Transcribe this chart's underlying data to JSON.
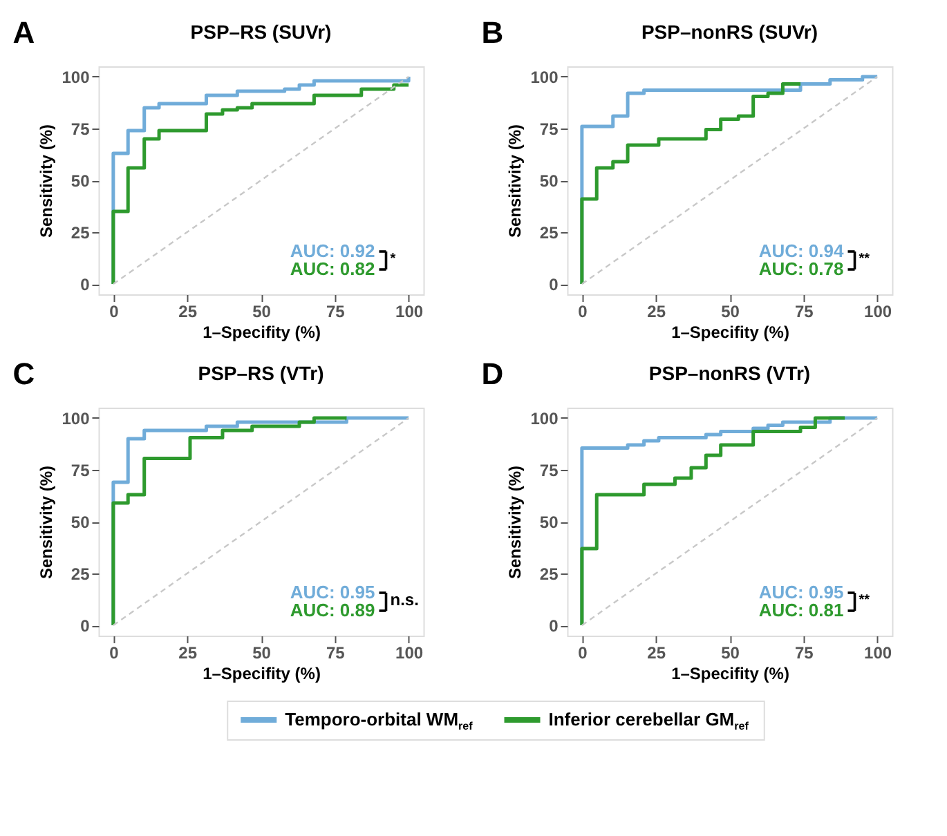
{
  "chart_data": [
    {
      "type": "step",
      "title": "PSP–RS (SUVr)",
      "xlabel": "1–Specifity (%)",
      "ylabel": "Sensitivity (%)",
      "xlim": [
        -5,
        105
      ],
      "ylim": [
        -5,
        105
      ],
      "xticks": [
        0,
        25,
        50,
        75,
        100
      ],
      "yticks": [
        0,
        25,
        50,
        75,
        100
      ],
      "grid": false,
      "legend": false,
      "annotations": [
        "A",
        "AUC: 0.92",
        "AUC: 0.82",
        "*"
      ],
      "series": [
        {
          "color": "#70acd9",
          "x": [
            0,
            0,
            5,
            10.5,
            15.5,
            31.5,
            42,
            58,
            63,
            68,
            100
          ],
          "values": [
            0,
            63,
            74,
            85,
            87,
            91,
            93,
            94,
            96,
            98,
            100
          ]
        },
        {
          "color": "#2e9a2e",
          "x": [
            0,
            0,
            5,
            10.5,
            15.5,
            31.5,
            37,
            42,
            47,
            68,
            84,
            95,
            100
          ],
          "values": [
            0,
            35,
            56,
            70,
            74,
            82,
            84,
            85,
            87,
            91,
            94,
            96,
            96
          ]
        },
        {
          "type": "line",
          "color": "#c8c8c8",
          "line_style": "dashed",
          "x": [
            0,
            100
          ],
          "values": [
            0,
            100
          ]
        }
      ]
    },
    {
      "type": "step",
      "title": "PSP–nonRS (SUVr)",
      "xlabel": "1–Specifity (%)",
      "ylabel": "Sensitivity (%)",
      "xlim": [
        -5,
        105
      ],
      "ylim": [
        -5,
        105
      ],
      "xticks": [
        0,
        25,
        50,
        75,
        100
      ],
      "yticks": [
        0,
        25,
        50,
        75,
        100
      ],
      "grid": false,
      "legend": false,
      "annotations": [
        "B",
        "AUC: 0.94",
        "AUC: 0.78",
        "**"
      ],
      "series": [
        {
          "color": "#70acd9",
          "x": [
            0,
            0,
            10.5,
            15.5,
            21,
            74,
            84,
            95,
            100
          ],
          "values": [
            0,
            76,
            81,
            92,
            93.5,
            96.5,
            98.5,
            100,
            100
          ]
        },
        {
          "color": "#2e9a2e",
          "x": [
            0,
            0,
            5,
            10.5,
            15.5,
            26,
            42,
            47,
            53,
            58,
            63,
            68,
            74
          ],
          "values": [
            0,
            41,
            56,
            59,
            67,
            70,
            74.5,
            79.5,
            81,
            90.5,
            92,
            96.5,
            96.5
          ]
        },
        {
          "type": "line",
          "color": "#c8c8c8",
          "line_style": "dashed",
          "x": [
            0,
            100
          ],
          "values": [
            0,
            100
          ]
        }
      ]
    },
    {
      "type": "step",
      "title": "PSP–RS (VTr)",
      "xlabel": "1–Specifity (%)",
      "ylabel": "Sensitivity (%)",
      "xlim": [
        -5,
        105
      ],
      "ylim": [
        -5,
        105
      ],
      "xticks": [
        0,
        25,
        50,
        75,
        100
      ],
      "yticks": [
        0,
        25,
        50,
        75,
        100
      ],
      "grid": false,
      "legend": false,
      "annotations": [
        "C",
        "AUC: 0.95",
        "AUC: 0.89",
        "n.s."
      ],
      "series": [
        {
          "color": "#70acd9",
          "x": [
            0,
            0,
            5,
            10.5,
            31.5,
            42,
            79,
            100
          ],
          "values": [
            0,
            69,
            90,
            94,
            96,
            98,
            100,
            100
          ]
        },
        {
          "color": "#2e9a2e",
          "x": [
            0,
            0,
            5,
            10.5,
            26,
            37,
            47,
            63,
            68,
            79
          ],
          "values": [
            0,
            59,
            63,
            80.5,
            90.5,
            94,
            96,
            98,
            100,
            100
          ]
        },
        {
          "type": "line",
          "color": "#c8c8c8",
          "line_style": "dashed",
          "x": [
            0,
            100
          ],
          "values": [
            0,
            100
          ]
        }
      ]
    },
    {
      "type": "step",
      "title": "PSP–nonRS (VTr)",
      "xlabel": "1–Specifity (%)",
      "ylabel": "Sensitivity (%)",
      "xlim": [
        -5,
        105
      ],
      "ylim": [
        -5,
        105
      ],
      "xticks": [
        0,
        25,
        50,
        75,
        100
      ],
      "yticks": [
        0,
        25,
        50,
        75,
        100
      ],
      "grid": false,
      "legend": "bottom",
      "annotations": [
        "D",
        "AUC: 0.95",
        "AUC: 0.81",
        "**"
      ],
      "series": [
        {
          "name": "Temporo-orbital WM$_{ref}$",
          "color": "#70acd9",
          "x": [
            0,
            0,
            15.5,
            21,
            26,
            42,
            47,
            58,
            63,
            68,
            84,
            100
          ],
          "values": [
            0,
            85.5,
            87,
            89,
            90.5,
            92,
            93.5,
            95,
            96.5,
            98,
            100,
            100
          ]
        },
        {
          "name": "Inferior cerebellar GM$_{ref}$",
          "color": "#2e9a2e",
          "x": [
            0,
            0,
            5,
            21,
            31.5,
            37,
            42,
            47,
            58,
            74,
            79,
            89
          ],
          "values": [
            0,
            37,
            63,
            68,
            71,
            76,
            82,
            87,
            93.5,
            95.5,
            100,
            100
          ]
        },
        {
          "type": "line",
          "color": "#c8c8c8",
          "line_style": "dashed",
          "x": [
            0,
            100
          ],
          "values": [
            0,
            100
          ]
        }
      ]
    }
  ]
}
